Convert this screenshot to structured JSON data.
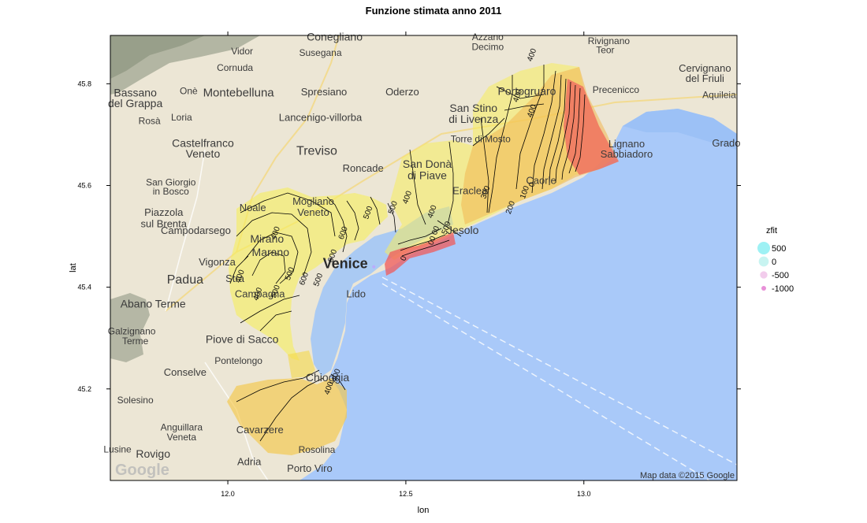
{
  "chart_data": {
    "type": "contour-map",
    "title": "Funzione stimata anno 2011",
    "xlabel": "lon",
    "ylabel": "lat",
    "xlim": [
      11.67,
      13.43
    ],
    "ylim": [
      45.02,
      45.895
    ],
    "x_ticks": [
      12.0,
      12.5,
      13.0
    ],
    "x_tick_labels": [
      "12.0",
      "12.5",
      "13.0"
    ],
    "y_ticks": [
      45.2,
      45.4,
      45.6,
      45.8
    ],
    "y_tick_labels": [
      "45.2",
      "45.4",
      "45.6",
      "45.8"
    ],
    "grid": false,
    "legend_position": "right",
    "legend": {
      "title": "zfit",
      "entries": [
        {
          "label": "500",
          "value": 500,
          "color": "#9ef1f4"
        },
        {
          "label": "0",
          "value": 0,
          "color": "#c8f4f1"
        },
        {
          "label": "-500",
          "value": -500,
          "color": "#f2ccec"
        },
        {
          "label": "-1000",
          "value": -1000,
          "color": "#e890d8"
        }
      ]
    },
    "contour_labels": [
      {
        "text": "400",
        "lon": 12.86,
        "lat": 45.855
      },
      {
        "text": "400",
        "lon": 12.86,
        "lat": 45.745
      },
      {
        "text": "400",
        "lon": 12.82,
        "lat": 45.775
      },
      {
        "text": "300",
        "lon": 12.73,
        "lat": 45.585
      },
      {
        "text": "200",
        "lon": 12.8,
        "lat": 45.555
      },
      {
        "text": "100",
        "lon": 12.84,
        "lat": 45.585
      },
      {
        "text": "0",
        "lon": 12.86,
        "lat": 45.6
      },
      {
        "text": "500",
        "lon": 12.47,
        "lat": 45.555
      },
      {
        "text": "500",
        "lon": 12.4,
        "lat": 45.545
      },
      {
        "text": "500",
        "lon": 12.18,
        "lat": 45.425
      },
      {
        "text": "500",
        "lon": 12.26,
        "lat": 45.413
      },
      {
        "text": "500",
        "lon": 12.14,
        "lat": 45.39
      },
      {
        "text": "400",
        "lon": 12.58,
        "lat": 45.547
      },
      {
        "text": "400",
        "lon": 12.51,
        "lat": 45.575
      },
      {
        "text": "400",
        "lon": 12.14,
        "lat": 45.505
      },
      {
        "text": "400",
        "lon": 12.04,
        "lat": 45.42
      },
      {
        "text": "400",
        "lon": 12.09,
        "lat": 45.385
      },
      {
        "text": "400",
        "lon": 12.31,
        "lat": 45.225
      },
      {
        "text": "400",
        "lon": 12.29,
        "lat": 45.2
      },
      {
        "text": "600",
        "lon": 12.3,
        "lat": 45.46
      },
      {
        "text": "600",
        "lon": 12.22,
        "lat": 45.415
      },
      {
        "text": "600",
        "lon": 12.33,
        "lat": 45.505
      },
      {
        "text": "500",
        "lon": 12.62,
        "lat": 45.515
      },
      {
        "text": "0",
        "lon": 12.5,
        "lat": 45.455
      },
      {
        "text": "00",
        "lon": 12.58,
        "lat": 45.49
      },
      {
        "text": "00",
        "lon": 12.59,
        "lat": 45.51
      }
    ],
    "point_layer": "single point near lon 12.41, lat 45.44"
  },
  "map": {
    "attribution": "Map data ©2015 Google",
    "logo": "Google",
    "places": [
      {
        "name": "Conegliano",
        "lon": 12.3,
        "lat": 45.885,
        "size": 14
      },
      {
        "name": "Vidor",
        "lon": 12.04,
        "lat": 45.858,
        "size": 12
      },
      {
        "name": "Susegana",
        "lon": 12.26,
        "lat": 45.855,
        "size": 12
      },
      {
        "name": "Azzano",
        "lon": 12.73,
        "lat": 45.886,
        "size": 12
      },
      {
        "name": "Decimo",
        "lon": 12.73,
        "lat": 45.866,
        "size": 12
      },
      {
        "name": "Rivignano",
        "lon": 13.07,
        "lat": 45.878,
        "size": 12
      },
      {
        "name": "Teor",
        "lon": 13.06,
        "lat": 45.86,
        "size": 12
      },
      {
        "name": "Cornuda",
        "lon": 12.02,
        "lat": 45.825,
        "size": 12
      },
      {
        "name": "Cervignano",
        "lon": 13.34,
        "lat": 45.824,
        "size": 13
      },
      {
        "name": "del Friuli",
        "lon": 13.34,
        "lat": 45.804,
        "size": 13
      },
      {
        "name": "Bassano",
        "lon": 11.74,
        "lat": 45.775,
        "size": 14
      },
      {
        "name": "del Grappa",
        "lon": 11.74,
        "lat": 45.754,
        "size": 14
      },
      {
        "name": "Onè",
        "lon": 11.89,
        "lat": 45.78,
        "size": 12
      },
      {
        "name": "Montebelluna",
        "lon": 12.03,
        "lat": 45.775,
        "size": 15
      },
      {
        "name": "Spresiano",
        "lon": 12.27,
        "lat": 45.777,
        "size": 13
      },
      {
        "name": "Oderzo",
        "lon": 12.49,
        "lat": 45.777,
        "size": 13
      },
      {
        "name": "Portogruaro",
        "lon": 12.84,
        "lat": 45.778,
        "size": 14
      },
      {
        "name": "Precenicco",
        "lon": 13.09,
        "lat": 45.782,
        "size": 12
      },
      {
        "name": "Aquileia",
        "lon": 13.38,
        "lat": 45.772,
        "size": 12
      },
      {
        "name": "Rosà",
        "lon": 11.78,
        "lat": 45.721,
        "size": 12
      },
      {
        "name": "Loria",
        "lon": 11.87,
        "lat": 45.728,
        "size": 12
      },
      {
        "name": "Lancenigo-villorba",
        "lon": 12.26,
        "lat": 45.727,
        "size": 13
      },
      {
        "name": "San Stino",
        "lon": 12.69,
        "lat": 45.745,
        "size": 14
      },
      {
        "name": "di Livenza",
        "lon": 12.69,
        "lat": 45.723,
        "size": 14
      },
      {
        "name": "Castelfranco",
        "lon": 11.93,
        "lat": 45.676,
        "size": 14
      },
      {
        "name": "Veneto",
        "lon": 11.93,
        "lat": 45.655,
        "size": 14
      },
      {
        "name": "Treviso",
        "lon": 12.25,
        "lat": 45.66,
        "size": 16
      },
      {
        "name": "Torre di Mosto",
        "lon": 12.71,
        "lat": 45.685,
        "size": 12
      },
      {
        "name": "Lignano",
        "lon": 13.12,
        "lat": 45.675,
        "size": 13
      },
      {
        "name": "Sabbiadoro",
        "lon": 13.12,
        "lat": 45.655,
        "size": 13
      },
      {
        "name": "Grado",
        "lon": 13.4,
        "lat": 45.677,
        "size": 13
      },
      {
        "name": "Roncade",
        "lon": 12.38,
        "lat": 45.627,
        "size": 13
      },
      {
        "name": "San Donà",
        "lon": 12.56,
        "lat": 45.635,
        "size": 14
      },
      {
        "name": "di Piave",
        "lon": 12.56,
        "lat": 45.612,
        "size": 14
      },
      {
        "name": "San Giorgio",
        "lon": 11.84,
        "lat": 45.6,
        "size": 12
      },
      {
        "name": "in Bosco",
        "lon": 11.84,
        "lat": 45.582,
        "size": 12
      },
      {
        "name": "Eraclea",
        "lon": 12.68,
        "lat": 45.583,
        "size": 13
      },
      {
        "name": "Caorle",
        "lon": 12.88,
        "lat": 45.603,
        "size": 13
      },
      {
        "name": "Mogliano",
        "lon": 12.24,
        "lat": 45.562,
        "size": 13
      },
      {
        "name": "Veneto",
        "lon": 12.24,
        "lat": 45.54,
        "size": 13
      },
      {
        "name": "Noale",
        "lon": 12.07,
        "lat": 45.55,
        "size": 13
      },
      {
        "name": "Piazzola",
        "lon": 11.82,
        "lat": 45.54,
        "size": 13
      },
      {
        "name": "sul Brenta",
        "lon": 11.82,
        "lat": 45.518,
        "size": 13
      },
      {
        "name": "Campodarsego",
        "lon": 11.91,
        "lat": 45.505,
        "size": 13
      },
      {
        "name": "Jesolo",
        "lon": 12.66,
        "lat": 45.505,
        "size": 14
      },
      {
        "name": "Mirano",
        "lon": 12.11,
        "lat": 45.488,
        "size": 14
      },
      {
        "name": "Marano",
        "lon": 12.12,
        "lat": 45.461,
        "size": 14
      },
      {
        "name": "Vigonza",
        "lon": 11.97,
        "lat": 45.443,
        "size": 13
      },
      {
        "name": "Venice",
        "lon": 12.33,
        "lat": 45.437,
        "size": 18,
        "big": true
      },
      {
        "name": "Padua",
        "lon": 11.88,
        "lat": 45.407,
        "size": 16
      },
      {
        "name": "Stra",
        "lon": 12.02,
        "lat": 45.41,
        "size": 13
      },
      {
        "name": "Campagna",
        "lon": 12.09,
        "lat": 45.38,
        "size": 13
      },
      {
        "name": "Lido",
        "lon": 12.36,
        "lat": 45.38,
        "size": 13
      },
      {
        "name": "Abano Terme",
        "lon": 11.79,
        "lat": 45.36,
        "size": 14
      },
      {
        "name": "Galzignano",
        "lon": 11.73,
        "lat": 45.307,
        "size": 12
      },
      {
        "name": "Terme",
        "lon": 11.74,
        "lat": 45.288,
        "size": 12
      },
      {
        "name": "Piove di Sacco",
        "lon": 12.04,
        "lat": 45.29,
        "size": 14
      },
      {
        "name": "Pontelongo",
        "lon": 12.03,
        "lat": 45.249,
        "size": 12
      },
      {
        "name": "Conselve",
        "lon": 11.88,
        "lat": 45.226,
        "size": 13
      },
      {
        "name": "Chioggia",
        "lon": 12.28,
        "lat": 45.215,
        "size": 14
      },
      {
        "name": "Solesino",
        "lon": 11.74,
        "lat": 45.172,
        "size": 12
      },
      {
        "name": "Anguillara",
        "lon": 11.87,
        "lat": 45.118,
        "size": 12
      },
      {
        "name": "Veneta",
        "lon": 11.87,
        "lat": 45.099,
        "size": 12
      },
      {
        "name": "Cavarzere",
        "lon": 12.09,
        "lat": 45.113,
        "size": 13
      },
      {
        "name": "Rovigo",
        "lon": 11.79,
        "lat": 45.065,
        "size": 14
      },
      {
        "name": "Adria",
        "lon": 12.06,
        "lat": 45.05,
        "size": 13
      },
      {
        "name": "Rosolina",
        "lon": 12.25,
        "lat": 45.074,
        "size": 12
      },
      {
        "name": "Porto Viro",
        "lon": 12.23,
        "lat": 45.037,
        "size": 13
      },
      {
        "name": "Lusine",
        "lon": 11.69,
        "lat": 45.075,
        "size": 12
      }
    ]
  }
}
